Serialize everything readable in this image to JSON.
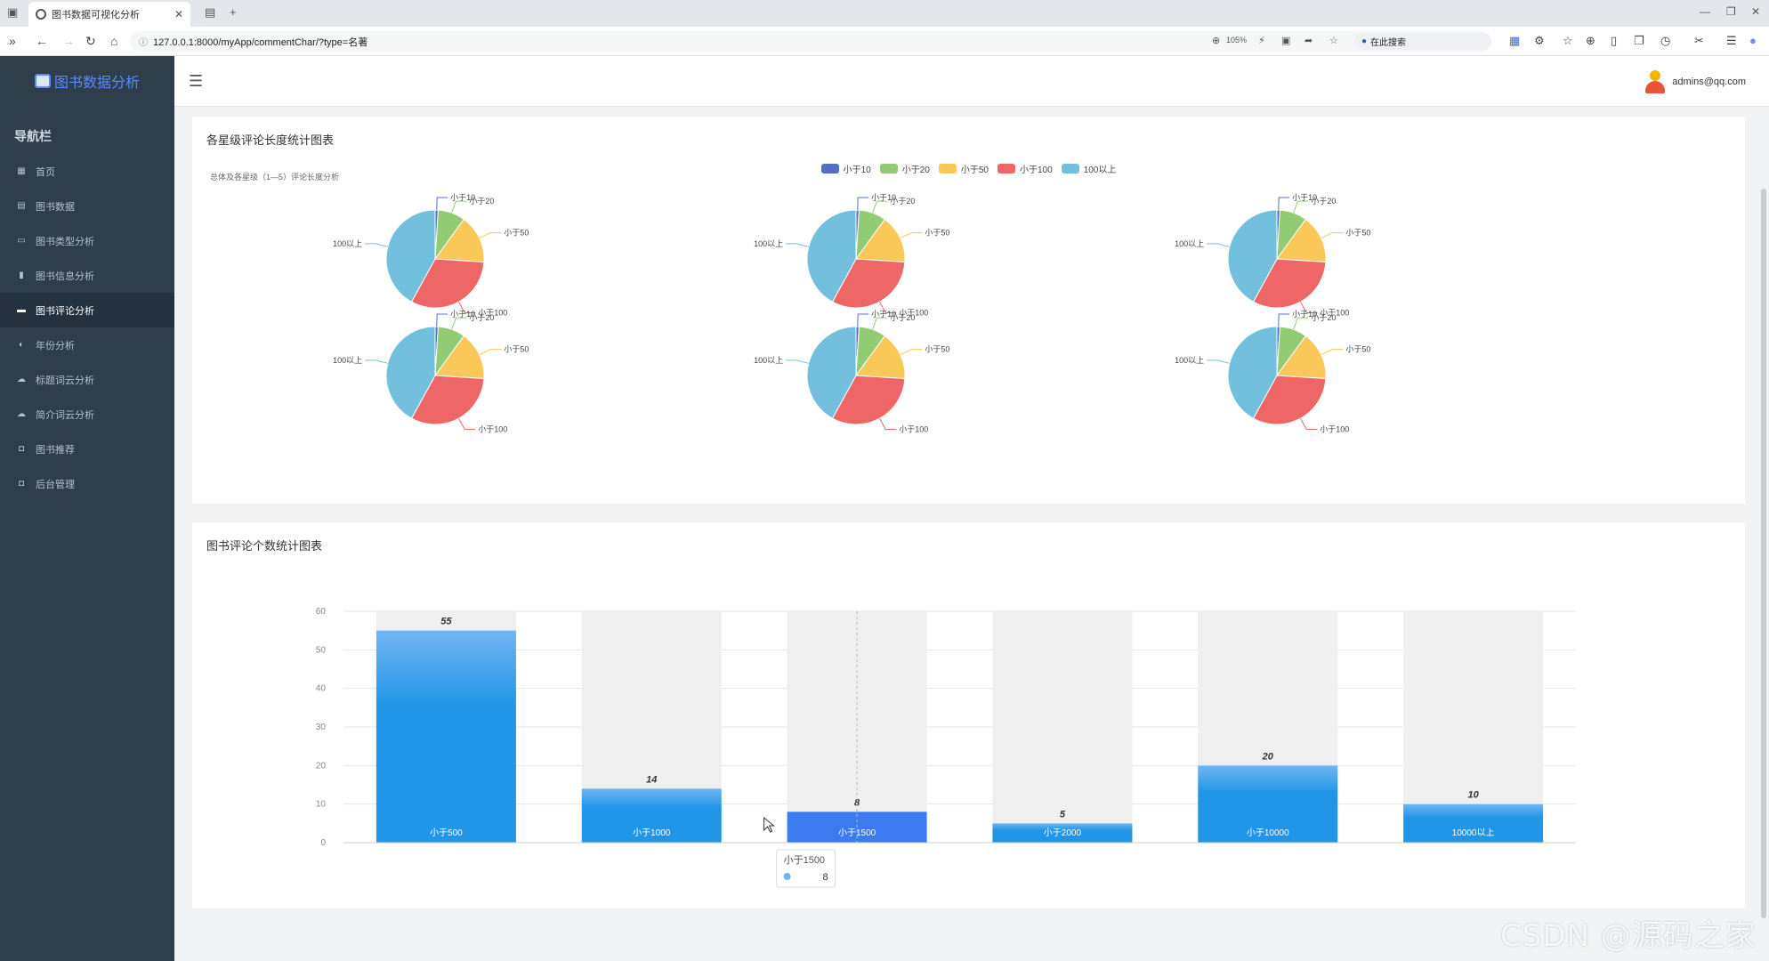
{
  "browser": {
    "tab_title": "图书数据可视化分析",
    "url": "127.0.0.1:8000/myApp/commentChar/?type=名著",
    "zoom": "105%",
    "search_placeholder": "在此搜索"
  },
  "sidebar": {
    "brand": "图书数据分析",
    "nav_title": "导航栏",
    "items": [
      {
        "label": "首页",
        "icon": "dashboard-icon",
        "glyph": "▦"
      },
      {
        "label": "图书数据",
        "icon": "calendar-icon",
        "glyph": "▤"
      },
      {
        "label": "图书类型分析",
        "icon": "print-icon",
        "glyph": "▭"
      },
      {
        "label": "图书信息分析",
        "icon": "book-icon",
        "glyph": "▮"
      },
      {
        "label": "图书评论分析",
        "icon": "comment-icon",
        "glyph": "▬",
        "active": true
      },
      {
        "label": "年份分析",
        "icon": "history-icon",
        "glyph": "◐"
      },
      {
        "label": "标题词云分析",
        "icon": "cloud-icon",
        "glyph": "☁"
      },
      {
        "label": "简介词云分析",
        "icon": "cloud-upload-icon",
        "glyph": "☁"
      },
      {
        "label": "图书推荐",
        "icon": "recommend-icon",
        "glyph": "◘"
      },
      {
        "label": "后台管理",
        "icon": "admin-icon",
        "glyph": "◘"
      }
    ]
  },
  "header": {
    "user_email": "admins@qq.com"
  },
  "pie_card": {
    "title": "各星级评论长度统计图表",
    "subtitle": "总体及各星级（1—5）评论长度分析",
    "legend": [
      "小于10",
      "小于20",
      "小于50",
      "小于100",
      "100以上"
    ],
    "colors": [
      "#5470c6",
      "#91cc75",
      "#fac858",
      "#ee6666",
      "#73c0de"
    ],
    "label_list": [
      "小于10",
      "小于20",
      "小于50",
      "小于100",
      "100以上"
    ],
    "pies": [
      {
        "values": [
          1,
          9,
          16,
          32,
          42
        ]
      },
      {
        "values": [
          1,
          9,
          16,
          32,
          42
        ]
      },
      {
        "values": [
          1,
          9,
          16,
          32,
          42
        ]
      },
      {
        "values": [
          1,
          9,
          16,
          32,
          42
        ]
      },
      {
        "values": [
          1,
          9,
          16,
          32,
          42
        ]
      },
      {
        "values": [
          1,
          9,
          16,
          32,
          42
        ]
      }
    ]
  },
  "bar_card": {
    "title": "图书评论个数统计图表"
  },
  "chart_data": {
    "type": "bar",
    "categories": [
      "小于500",
      "小于1000",
      "小于1500",
      "小于2000",
      "小于10000",
      "10000以上"
    ],
    "values": [
      55,
      14,
      8,
      5,
      20,
      10
    ],
    "ylim": [
      0,
      60
    ],
    "yticks": [
      0,
      10,
      20,
      30,
      40,
      50,
      60
    ],
    "tooltip": {
      "category": "小于1500",
      "value": "8"
    },
    "highlight_color": "#3a7bf0",
    "bar_color": "#2196e8"
  },
  "watermark": "CSDN @源码之家"
}
